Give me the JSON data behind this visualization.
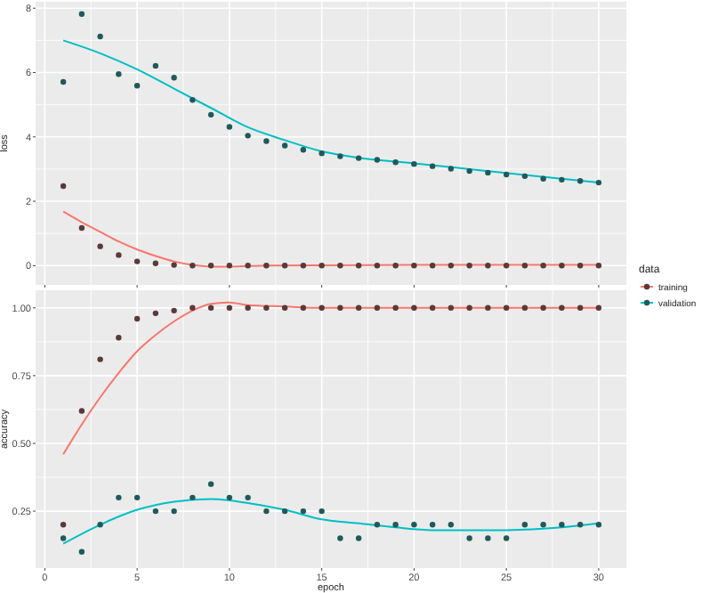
{
  "chart_data": [
    {
      "type": "scatter",
      "ylabel": "loss",
      "xlim": [
        -0.5,
        31.5
      ],
      "xticks": [
        0,
        5,
        10,
        15,
        20,
        25,
        30
      ],
      "ylim": [
        -0.6,
        8.2
      ],
      "yticks": [
        0,
        2,
        4,
        6,
        8
      ],
      "grid": true,
      "tick_labels": "y",
      "legend": "right",
      "legend_title": "data",
      "line_style": "solid",
      "x": [
        1,
        2,
        3,
        4,
        5,
        6,
        7,
        8,
        9,
        10,
        11,
        12,
        13,
        14,
        15,
        16,
        17,
        18,
        19,
        20,
        21,
        22,
        23,
        24,
        25,
        26,
        27,
        28,
        29,
        30
      ],
      "series": [
        {
          "type": "scatter",
          "name": "training",
          "marker": "circle",
          "color": "#5a3a38",
          "values": [
            2.47,
            1.17,
            0.6,
            0.33,
            0.13,
            0.07,
            0.02,
            0,
            0,
            0,
            0,
            0,
            0,
            0,
            0,
            0,
            0,
            0,
            0,
            0,
            0,
            0,
            0,
            0,
            0,
            0,
            0,
            0,
            0,
            0
          ]
        },
        {
          "type": "scatter",
          "name": "validation",
          "marker": "circle",
          "color": "#1f5a5b",
          "values": [
            5.71,
            7.82,
            7.12,
            5.95,
            5.59,
            6.21,
            5.84,
            5.15,
            4.69,
            4.31,
            4.04,
            3.87,
            3.73,
            3.6,
            3.49,
            3.4,
            3.34,
            3.29,
            3.21,
            3.16,
            3.09,
            3.01,
            2.94,
            2.89,
            2.83,
            2.78,
            2.7,
            2.67,
            2.63,
            2.58
          ]
        },
        {
          "type": "line",
          "marker": "none",
          "color": "#f8766d",
          "x": [
            1,
            2,
            3,
            4,
            5,
            6,
            7,
            8,
            9,
            10,
            12,
            15,
            20,
            25,
            30
          ],
          "values": [
            1.68,
            1.35,
            1.05,
            0.75,
            0.5,
            0.3,
            0.13,
            0.02,
            -0.03,
            -0.03,
            0,
            0.01,
            0.02,
            0.02,
            0.02
          ]
        },
        {
          "type": "line",
          "marker": "none",
          "color": "#00bfc4",
          "x": [
            1,
            3,
            5,
            7,
            9,
            11,
            13,
            15,
            17,
            20,
            23,
            26,
            30
          ],
          "values": [
            7.0,
            6.6,
            6.1,
            5.5,
            4.9,
            4.3,
            3.9,
            3.55,
            3.35,
            3.18,
            3.0,
            2.82,
            2.58
          ]
        }
      ]
    },
    {
      "type": "scatter",
      "xlabel": "epoch",
      "ylabel": "accuracy",
      "xlim": [
        -0.5,
        31.5
      ],
      "xticks": [
        0,
        5,
        10,
        15,
        20,
        25,
        30
      ],
      "ylim": [
        0.04,
        1.065
      ],
      "yticks": [
        {
          "value": 0.25,
          "label": "0.25"
        },
        {
          "value": 0.5,
          "label": "0.50"
        },
        {
          "value": 0.75,
          "label": "0.75"
        },
        {
          "value": 1,
          "label": "1.00"
        }
      ],
      "grid": true,
      "line_style": "solid",
      "x": [
        1,
        2,
        3,
        4,
        5,
        6,
        7,
        8,
        9,
        10,
        11,
        12,
        13,
        14,
        15,
        16,
        17,
        18,
        19,
        20,
        21,
        22,
        23,
        24,
        25,
        26,
        27,
        28,
        29,
        30
      ],
      "series": [
        {
          "type": "scatter",
          "marker": "circle",
          "color": "#5a3a38",
          "values": [
            0.2,
            0.62,
            0.81,
            0.89,
            0.96,
            0.98,
            0.99,
            1,
            1,
            1,
            1,
            1,
            1,
            1,
            1,
            1,
            1,
            1,
            1,
            1,
            1,
            1,
            1,
            1,
            1,
            1,
            1,
            1,
            1,
            1
          ]
        },
        {
          "type": "scatter",
          "marker": "circle",
          "color": "#1f5a5b",
          "values": [
            0.15,
            0.1,
            0.2,
            0.3,
            0.3,
            0.25,
            0.25,
            0.3,
            0.35,
            0.3,
            0.3,
            0.25,
            0.25,
            0.25,
            0.25,
            0.15,
            0.15,
            0.2,
            0.2,
            0.2,
            0.2,
            0.2,
            0.15,
            0.15,
            0.15,
            0.2,
            0.2,
            0.2,
            0.2,
            0.2
          ]
        },
        {
          "type": "line",
          "marker": "none",
          "color": "#f8766d",
          "x": [
            1,
            2,
            3,
            4,
            5,
            6,
            7,
            8,
            9,
            10,
            11,
            13,
            15,
            20,
            25,
            30
          ],
          "values": [
            0.46,
            0.57,
            0.67,
            0.76,
            0.84,
            0.9,
            0.95,
            0.99,
            1.015,
            1.02,
            1.01,
            1.005,
            1,
            1,
            1,
            1
          ]
        },
        {
          "type": "line",
          "marker": "none",
          "color": "#00bfc4",
          "x": [
            1,
            3,
            5,
            7,
            9,
            11,
            13,
            15,
            17,
            19,
            21,
            25,
            28,
            30
          ],
          "values": [
            0.13,
            0.2,
            0.255,
            0.285,
            0.295,
            0.28,
            0.255,
            0.22,
            0.205,
            0.19,
            0.18,
            0.18,
            0.19,
            0.205
          ]
        }
      ]
    }
  ]
}
